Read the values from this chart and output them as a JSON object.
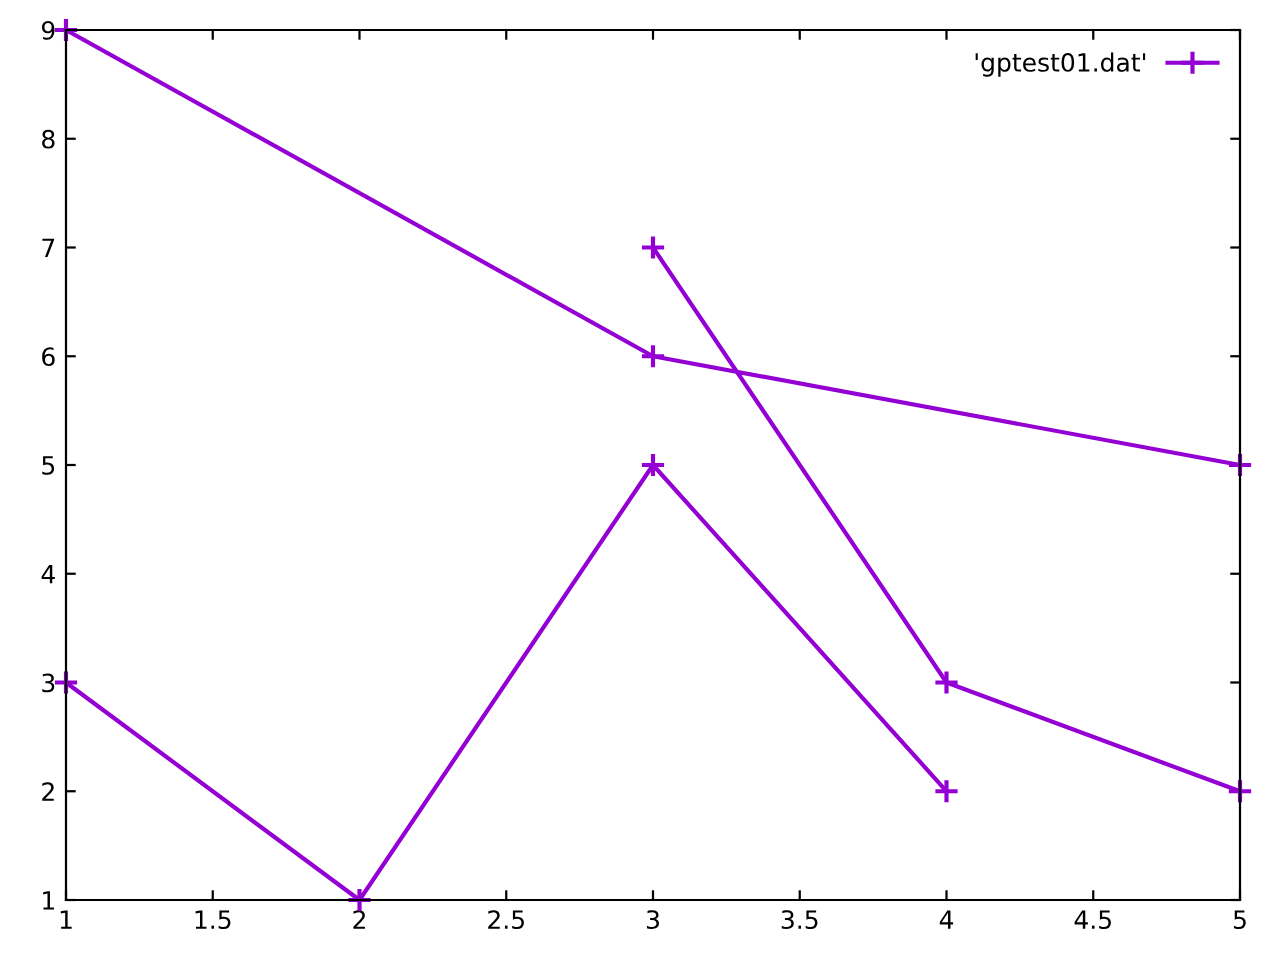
{
  "chart_data": {
    "type": "line",
    "series": [
      {
        "name": "'gptest01.dat'",
        "color": "#9400d3",
        "x": [
          1,
          3,
          5,
          null,
          3,
          4,
          5,
          null,
          1,
          2,
          3,
          4
        ],
        "values": [
          9,
          6,
          5,
          null,
          7,
          3,
          2,
          null,
          3,
          1,
          5,
          2
        ]
      }
    ],
    "xlim": [
      1,
      5
    ],
    "xticks": [
      1,
      1.5,
      2,
      2.5,
      3,
      3.5,
      4,
      4.5,
      5
    ],
    "ylim": [
      1,
      9
    ],
    "yticks": [
      1,
      2,
      3,
      4,
      5,
      6,
      7,
      8,
      9
    ],
    "marker": "cross",
    "line_style": "solid",
    "grid": false,
    "legend": "top right"
  }
}
